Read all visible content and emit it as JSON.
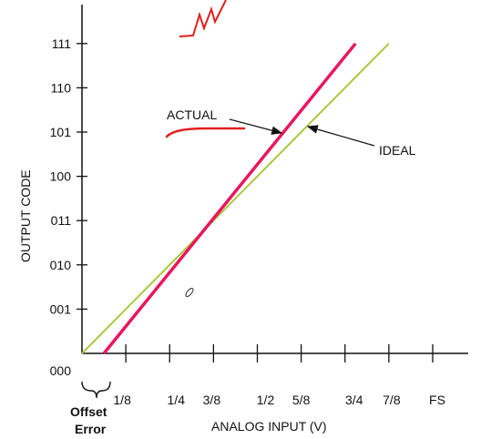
{
  "chart_data": {
    "type": "line",
    "xlabel": "ANALOG INPUT (V)",
    "ylabel": "OUTPUT CODE",
    "x_tick_labels": [
      "1/8",
      "1/4",
      "3/8",
      "1/2",
      "5/8",
      "3/4",
      "7/8",
      "FS"
    ],
    "y_tick_labels": [
      "000",
      "001",
      "010",
      "011",
      "100",
      "101",
      "110",
      "111"
    ],
    "xlim": [
      0,
      1
    ],
    "ylim": [
      0,
      7.7
    ],
    "series": [
      {
        "name": "IDEAL",
        "color": "#a8c83c",
        "points": [
          [
            0,
            0
          ],
          [
            0.875,
            7.0
          ]
        ]
      },
      {
        "name": "ACTUAL",
        "color": "#e8175d",
        "points": [
          [
            0.0625,
            0
          ],
          [
            0.78,
            7.0
          ]
        ]
      }
    ],
    "annotations": [
      {
        "text": "ACTUAL",
        "target": "ACTUAL"
      },
      {
        "text": "IDEAL",
        "target": "IDEAL"
      }
    ],
    "offset_label": [
      "Offset",
      "Error"
    ],
    "grid": false
  }
}
